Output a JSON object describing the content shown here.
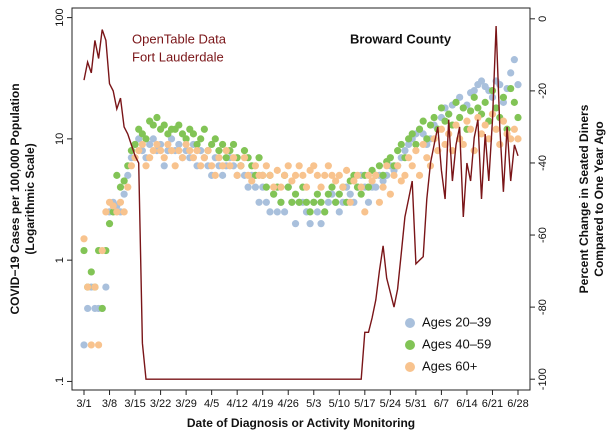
{
  "chart_data": {
    "type": "scatter",
    "title": "Broward County",
    "annotations": [
      "OpenTable Data",
      "Fort Lauderdale"
    ],
    "x_label": "Date of Diagnosis or Activity Monitoring",
    "y_label": [
      "COVID−19 Cases per 100,000 Population",
      "(Logarithmic Scale)"
    ],
    "y2_label": [
      "Percent Change in Seated Diners",
      "Compared to One Year Ago"
    ],
    "log_y": true,
    "legend": "lower right",
    "categories": [
      "3/1",
      null,
      null,
      null,
      null,
      null,
      null,
      "3/8",
      null,
      null,
      null,
      null,
      null,
      null,
      "3/15",
      null,
      null,
      null,
      null,
      null,
      null,
      "3/22",
      null,
      null,
      null,
      null,
      null,
      null,
      "3/29",
      null,
      null,
      null,
      null,
      null,
      null,
      "4/5",
      null,
      null,
      null,
      null,
      null,
      null,
      "4/12",
      null,
      null,
      null,
      null,
      null,
      null,
      "4/19",
      null,
      null,
      null,
      null,
      null,
      null,
      "4/26",
      null,
      null,
      null,
      null,
      null,
      null,
      "5/3",
      null,
      null,
      null,
      null,
      null,
      null,
      "5/10",
      null,
      null,
      null,
      null,
      null,
      null,
      "5/17",
      null,
      null,
      null,
      null,
      null,
      null,
      "5/24",
      null,
      null,
      null,
      null,
      null,
      null,
      "5/31",
      null,
      null,
      null,
      null,
      null,
      null,
      "6/7",
      null,
      null,
      null,
      null,
      null,
      null,
      "6/14",
      null,
      null,
      null,
      null,
      null,
      null,
      "6/21",
      null,
      null,
      null,
      null,
      null,
      null,
      "6/28"
    ],
    "ylim": [
      0.085,
      120
    ],
    "yticks": [
      {
        "value": 0.1,
        "label": ".1"
      },
      1,
      10,
      100
    ],
    "y2lim": [
      -103,
      3
    ],
    "y2ticks": [
      0,
      -20,
      -40,
      -60,
      -80,
      -100
    ],
    "series": [
      {
        "name": "Ages 20–39",
        "color": "#a9c0dc",
        "values": [
          0.2,
          0.4,
          0.6,
          0.4,
          0.4,
          0.4,
          0.6,
          2.5,
          3,
          2.8,
          2.5,
          3.5,
          5,
          7,
          9,
          10,
          8,
          7,
          9,
          10,
          8,
          9,
          6,
          8,
          10,
          8,
          9,
          7,
          8,
          7,
          9,
          6,
          8,
          7,
          6,
          5,
          7,
          6,
          5,
          6,
          7,
          6,
          5,
          6,
          5,
          4,
          5,
          4,
          3,
          4,
          3,
          2.5,
          3.5,
          2.5,
          3,
          2.5,
          4,
          3,
          2,
          3,
          3,
          2.5,
          2,
          3,
          2.5,
          2,
          2.5,
          3,
          3.5,
          3,
          2.5,
          3,
          4,
          3.5,
          3,
          4,
          5,
          4,
          3,
          4,
          4,
          5,
          4.5,
          5,
          6,
          5.5,
          6,
          7,
          8,
          9,
          10,
          11,
          12,
          11,
          9,
          10,
          13,
          12,
          15,
          18,
          16,
          19,
          20,
          22,
          18,
          19,
          24,
          25,
          28,
          30,
          27,
          25,
          22,
          30,
          28,
          20,
          26,
          35,
          45,
          28
        ]
      },
      {
        "name": "Ages 40–59",
        "color": "#82c456",
        "values": [
          1.2,
          0.6,
          0.8,
          0.6,
          1.2,
          0.4,
          1.2,
          2,
          2.5,
          5,
          4,
          4.5,
          6,
          8,
          9,
          12,
          11,
          10,
          14,
          13,
          15,
          12,
          13,
          11,
          12,
          12,
          13,
          11,
          10,
          12,
          11,
          9,
          10,
          12,
          8,
          9,
          10,
          8,
          9,
          7,
          8,
          9,
          7,
          6,
          8,
          7,
          6,
          5,
          7,
          5,
          4,
          5,
          3.5,
          4,
          3,
          5,
          4,
          3,
          3.5,
          3,
          4,
          3,
          2.5,
          3,
          3.5,
          3,
          2.5,
          3.5,
          4,
          3,
          3.5,
          4,
          3,
          4.5,
          5,
          4,
          3.5,
          5,
          4,
          5.5,
          5,
          6,
          5,
          6.5,
          7,
          6,
          8,
          9,
          7,
          10,
          11,
          9,
          12,
          14,
          10,
          13,
          15,
          12,
          18,
          14,
          16,
          13,
          20,
          15,
          18,
          12,
          17,
          22,
          18,
          16,
          20,
          14,
          25,
          18,
          15,
          22,
          12,
          26,
          20,
          15
        ]
      },
      {
        "name": "Ages 60+",
        "color": "#f8c38e",
        "values": [
          1.5,
          0.6,
          0.2,
          0.6,
          0.2,
          1.2,
          2.5,
          3,
          2.8,
          2.5,
          3,
          2.5,
          4,
          6,
          7,
          8,
          9,
          6,
          7,
          8,
          9,
          8,
          7,
          9,
          8,
          6,
          8,
          7,
          9,
          8,
          7,
          8,
          6,
          7,
          8,
          6,
          5,
          7,
          6,
          8,
          6,
          7,
          5,
          6,
          7,
          5,
          4.5,
          6,
          5,
          5,
          6,
          5,
          4,
          5.5,
          4,
          5,
          6,
          4.5,
          5,
          6,
          5,
          4,
          5.5,
          6,
          5,
          4,
          5,
          6,
          5,
          4.5,
          5,
          4,
          5.5,
          3,
          4.5,
          5,
          4,
          2.5,
          5,
          4.5,
          5,
          3,
          4,
          6,
          3.5,
          5,
          6,
          4.5,
          5,
          7,
          6,
          8,
          5,
          9,
          7,
          6,
          10,
          8,
          12,
          9,
          11,
          8,
          13,
          10,
          9,
          14,
          12,
          8,
          15,
          11,
          13,
          10,
          16,
          12,
          9,
          14,
          11,
          10,
          12,
          10
        ]
      },
      {
        "type": "line",
        "axis": "y2",
        "color": "#7a1518",
        "values": [
          -17,
          -12,
          -15,
          -6,
          -11,
          -3,
          -6,
          -18,
          -20,
          -25,
          -22,
          -30,
          -32,
          -35,
          -38,
          -40,
          -90,
          -100,
          -100,
          -100,
          -100,
          -100,
          -100,
          -100,
          -100,
          -100,
          -100,
          -100,
          -100,
          -100,
          -100,
          -100,
          -100,
          -100,
          -100,
          -100,
          -100,
          -100,
          -100,
          -100,
          -100,
          -100,
          -100,
          -100,
          -100,
          -100,
          -100,
          -100,
          -100,
          -100,
          -100,
          -100,
          -100,
          -100,
          -100,
          -100,
          -100,
          -100,
          -100,
          -100,
          -100,
          -100,
          -100,
          -100,
          -100,
          -100,
          -100,
          -100,
          -100,
          -100,
          -100,
          -100,
          -100,
          -100,
          -100,
          -100,
          -100,
          -87,
          -87,
          -83,
          -78,
          -70,
          -63,
          -72,
          -76,
          -80,
          -75,
          -65,
          -55,
          -50,
          -45,
          -68,
          -67,
          -66,
          -50,
          -40,
          -35,
          -30,
          -42,
          -50,
          -28,
          -45,
          -35,
          -30,
          -55,
          -40,
          -45,
          -33,
          -28,
          -50,
          -32,
          -45,
          -28,
          -2,
          -30,
          -48,
          -30,
          -45,
          -35,
          -38
        ]
      }
    ]
  }
}
